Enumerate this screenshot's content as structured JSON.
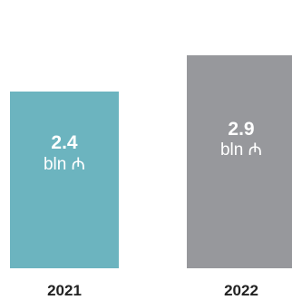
{
  "chart_data": {
    "type": "bar",
    "categories": [
      "2021",
      "2022"
    ],
    "values": [
      2.4,
      2.9
    ],
    "value_labels": [
      "2.4",
      "2.9"
    ],
    "unit_label": "bln ₼",
    "colors": [
      "#6cb4bf",
      "#97989c"
    ],
    "title": "",
    "xlabel": "",
    "ylabel": "",
    "ylim": [
      0,
      3.65
    ],
    "grid": false,
    "legend": "none"
  }
}
